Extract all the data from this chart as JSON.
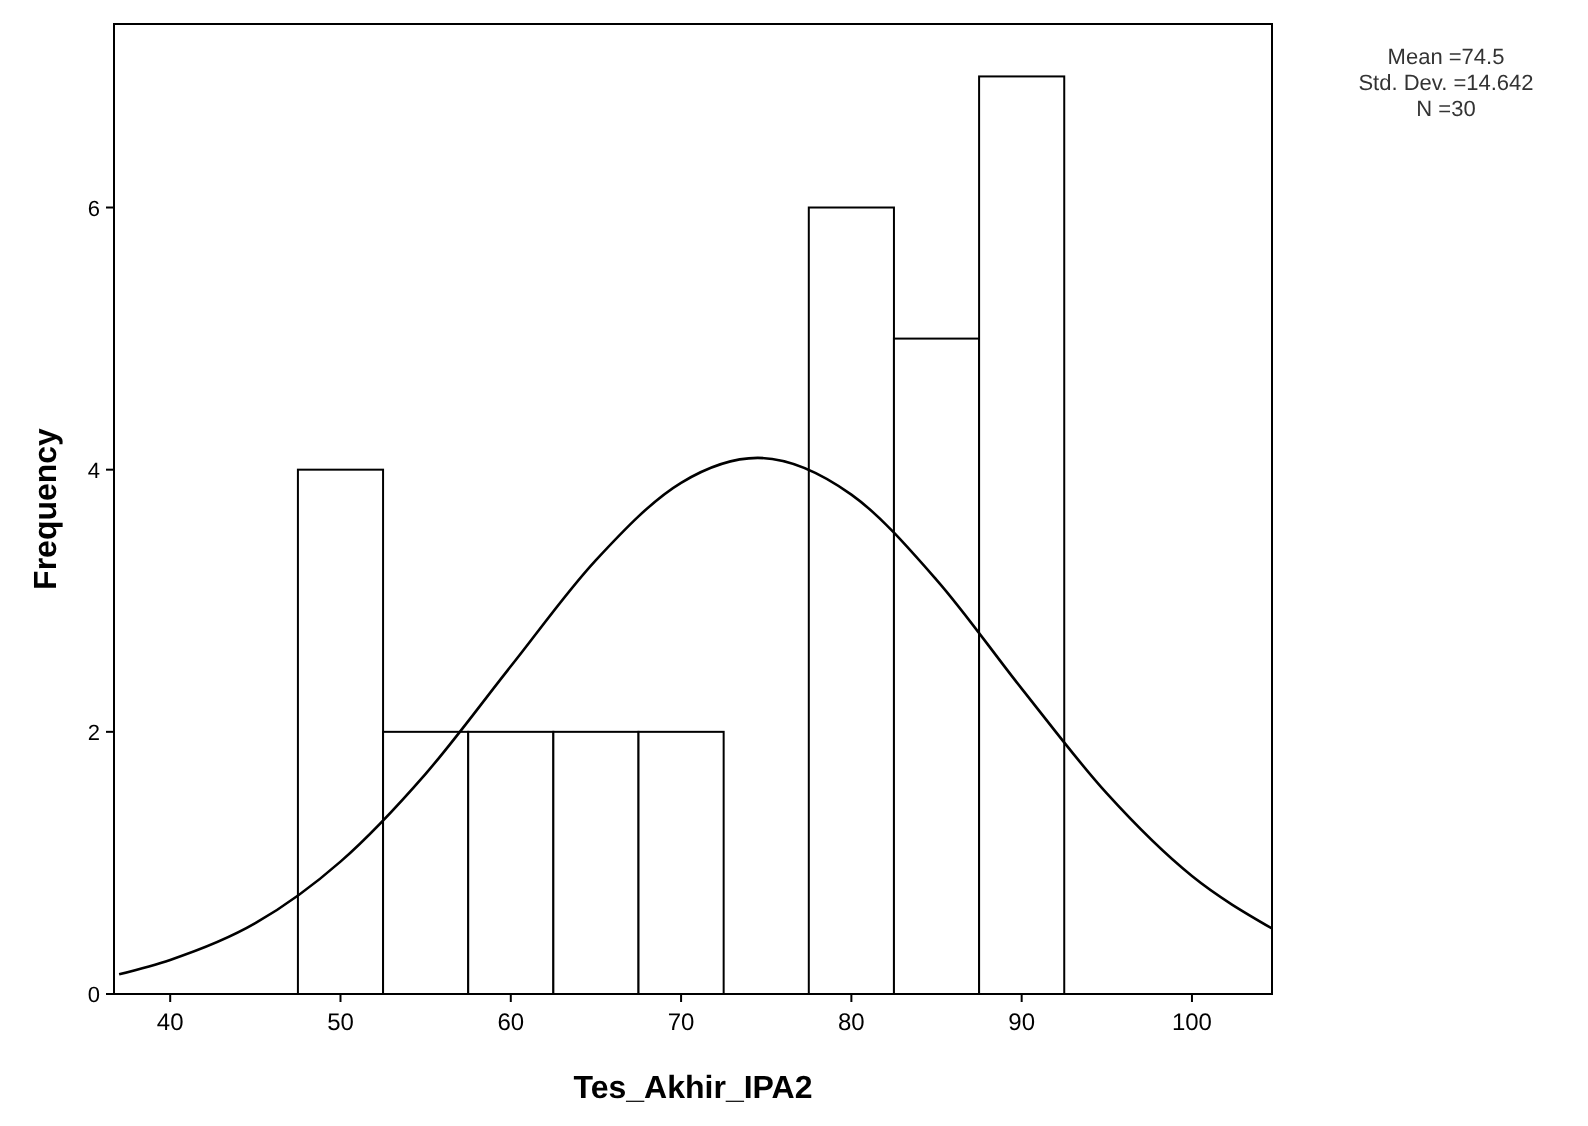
{
  "chart_data": {
    "type": "histogram",
    "xlabel": "Tes_Akhir_IPA2",
    "ylabel": "Frequency",
    "bins": [
      47.5,
      52.5,
      57.5,
      62.5,
      67.5,
      72.5,
      77.5,
      82.5,
      87.5,
      92.5
    ],
    "values": [
      4,
      2,
      2,
      2,
      2,
      0,
      6,
      5,
      7
    ],
    "color": "#ffffff",
    "series": [
      {
        "type": "line",
        "color": "#000000",
        "x": [
          37,
          40,
          45,
          50,
          55,
          60,
          65,
          70,
          74.5,
          80,
          85,
          90,
          95,
          100,
          104.7
        ],
        "values": [
          0.15,
          0.26,
          0.54,
          1.01,
          1.68,
          2.5,
          3.31,
          3.9,
          4.09,
          3.81,
          3.16,
          2.33,
          1.53,
          0.9,
          0.5
        ]
      }
    ],
    "xlim": [
      36.7,
      104.7
    ],
    "xticks": [
      40,
      50,
      60,
      70,
      80,
      90,
      100
    ],
    "ylim": [
      0,
      7.4
    ],
    "yticks": [
      0,
      2,
      4,
      6
    ],
    "grid": false,
    "annotations": [
      "Mean =74.5",
      "Std. Dev. =14.642",
      "N =30"
    ]
  }
}
